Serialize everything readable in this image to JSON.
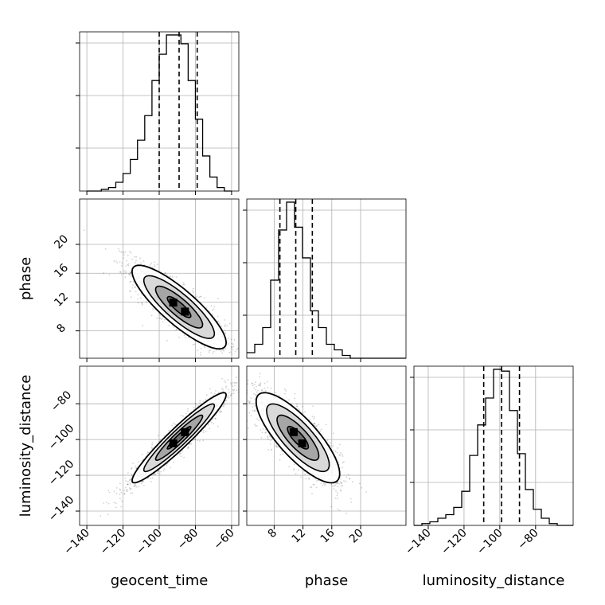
{
  "chart_data": {
    "type": "corner",
    "parameters": [
      "geocent_time",
      "phase",
      "luminosity_distance"
    ],
    "ranges": {
      "geocent_time": [
        -144,
        -56
      ],
      "phase": [
        4.2,
        26.3
      ],
      "luminosity_distance": [
        -148,
        -59
      ]
    },
    "ticks": {
      "geocent_time": [
        -140,
        -120,
        -100,
        -80,
        -60
      ],
      "phase": [
        8,
        12,
        16,
        20
      ],
      "luminosity_distance": [
        -140,
        -120,
        -100,
        -80
      ]
    },
    "quantiles": {
      "geocent_time": [
        -100,
        -89,
        -79
      ],
      "phase": [
        8.8,
        11.0,
        13.3
      ],
      "luminosity_distance": [
        -109,
        -99,
        -89
      ]
    },
    "histograms": {
      "geocent_time": {
        "edges": [
          -140,
          -136,
          -132,
          -128,
          -124,
          -120,
          -116,
          -112,
          -108,
          -104,
          -100,
          -96,
          -92,
          -88,
          -84,
          -80,
          -76,
          -72,
          -68,
          -64,
          -60
        ],
        "counts": [
          0,
          0,
          1,
          2,
          5,
          10,
          18,
          29,
          43,
          63,
          78,
          89,
          89,
          84,
          63,
          41,
          20,
          8,
          2,
          0
        ]
      },
      "phase": {
        "edges": [
          4.2,
          5.305,
          6.41,
          7.515,
          8.62,
          9.725,
          10.83,
          11.935,
          13.04,
          14.145,
          15.25,
          16.355,
          17.46,
          18.565,
          19.67,
          20.775,
          21.88,
          22.985,
          24.09,
          25.195,
          26.3
        ],
        "counts": [
          2,
          5,
          11,
          28,
          46,
          56,
          47,
          36,
          17,
          11,
          5,
          3,
          1,
          0,
          0,
          0,
          0,
          0,
          0,
          0
        ]
      },
      "luminosity_distance": {
        "edges": [
          -148,
          -143.55,
          -139.1,
          -134.65,
          -130.2,
          -125.75,
          -121.3,
          -116.85,
          -112.4,
          -107.95,
          -103.5,
          -99.05,
          -94.6,
          -90.15,
          -85.7,
          -81.25,
          -76.8,
          -72.35,
          -67.9,
          -63.45,
          -59
        ],
        "counts": [
          0,
          1,
          2,
          4,
          6,
          10,
          19,
          39,
          56,
          71,
          87,
          86,
          64,
          40,
          20,
          9,
          4,
          1,
          0,
          0
        ]
      }
    },
    "pairs": [
      {
        "x": "geocent_time",
        "y": "phase",
        "mean": [
          -89,
          11.3
        ],
        "sd": [
          13,
          2.9
        ],
        "correlation": -0.85,
        "contour_sigma": [
          0.5,
          1,
          1.5,
          2
        ]
      },
      {
        "x": "geocent_time",
        "y": "luminosity_distance",
        "mean": [
          -89,
          -99
        ],
        "sd": [
          13,
          12.6
        ],
        "correlation": 0.95,
        "contour_sigma": [
          0.5,
          1,
          1.5,
          2
        ]
      },
      {
        "x": "phase",
        "y": "luminosity_distance",
        "mean": [
          11.3,
          -99
        ],
        "sd": [
          2.9,
          12.6
        ],
        "correlation": -0.8,
        "contour_sigma": [
          0.5,
          1,
          1.5,
          2
        ]
      }
    ],
    "grid": true,
    "title": "",
    "legend": "none"
  }
}
